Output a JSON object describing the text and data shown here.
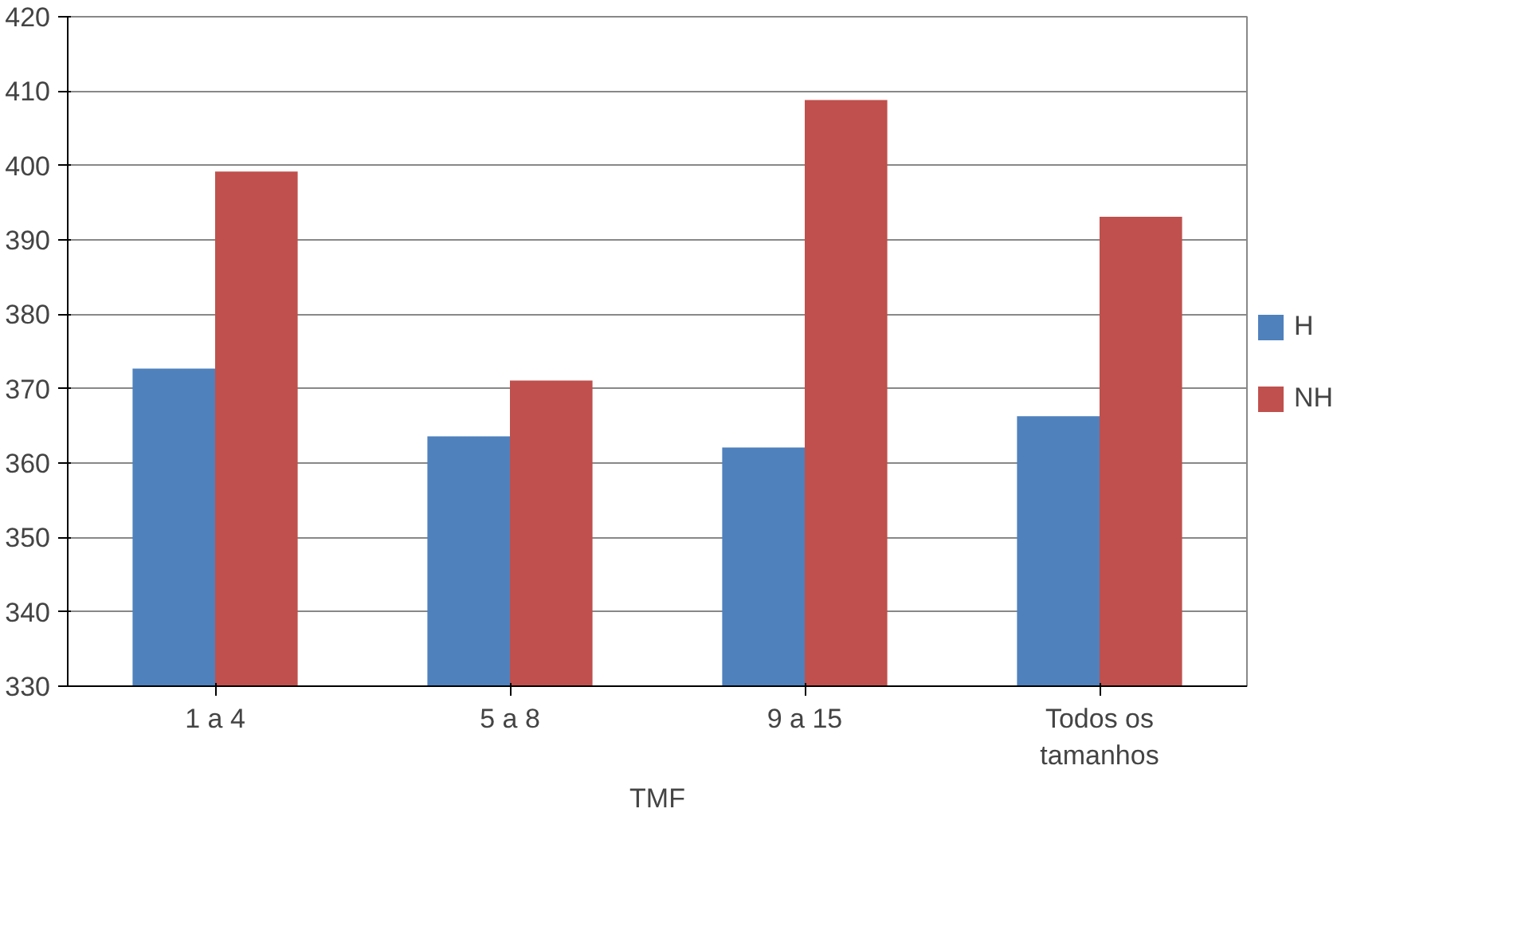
{
  "chart_data": {
    "type": "bar",
    "xlabel": "TMF",
    "categories": [
      "1 a 4",
      "5 a 8",
      "9 a 15",
      "Todos os tamanhos"
    ],
    "series": [
      {
        "name": "H",
        "color": "#4f81bd",
        "values": [
          372.7,
          363.6,
          362.1,
          366.3
        ]
      },
      {
        "name": "NH",
        "color": "#c0504d",
        "values": [
          399.2,
          371.1,
          408.8,
          393.1
        ]
      }
    ],
    "ylim": [
      330,
      420
    ],
    "yticks": [
      330,
      340,
      350,
      360,
      370,
      380,
      390,
      400,
      410,
      420
    ],
    "grid": "y",
    "legend": "right"
  }
}
